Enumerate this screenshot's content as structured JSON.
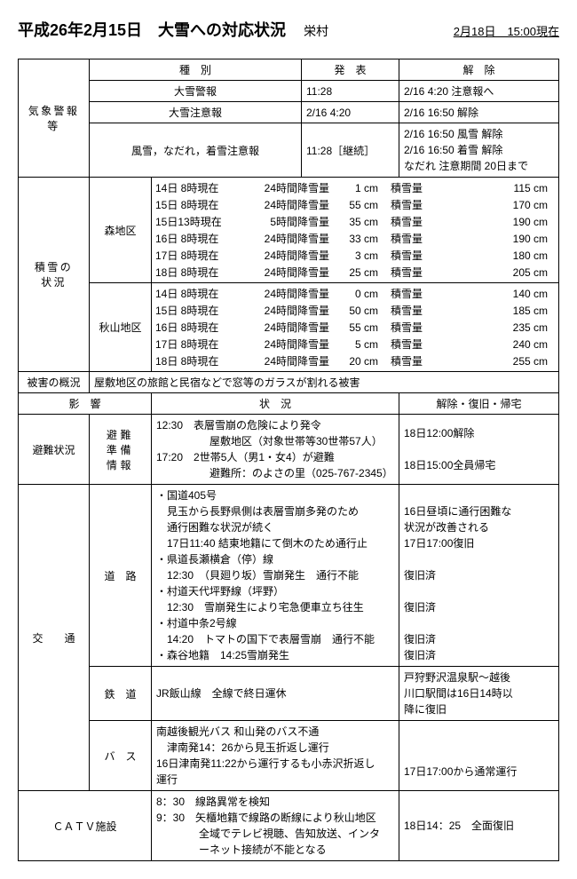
{
  "header": {
    "title": "平成26年2月15日　大雪への対応状況",
    "village": "栄村",
    "timestamp": "2月18日　15:00現在"
  },
  "weather": {
    "label": "気象警報等",
    "cols": [
      "種　別",
      "発　表",
      "解　除"
    ],
    "rows": [
      {
        "type": "大雪警報",
        "announced": "11:28",
        "cancelled": "2/16 4:20 注意報へ"
      },
      {
        "type": "大雪注意報",
        "announced": "2/16 4:20",
        "cancelled": "2/16 16:50 解除"
      },
      {
        "type": "風雪，なだれ，着雪注意報",
        "announced": "11:28［継続］",
        "cancelled": "2/16 16:50 風雪 解除\n2/16 16:50 着雪 解除\nなだれ 注意期間 20日まで"
      }
    ]
  },
  "snow": {
    "label": "積雪の\n状況",
    "areas": [
      {
        "name": "森地区",
        "rows": [
          {
            "dt": "14日 8時現在",
            "period": "24時間降雪量",
            "amt": "1 cm",
            "depth_label": "積雪量",
            "depth": "115 cm"
          },
          {
            "dt": "15日 8時現在",
            "period": "24時間降雪量",
            "amt": "55 cm",
            "depth_label": "積雪量",
            "depth": "170 cm"
          },
          {
            "dt": "15日13時現在",
            "period": "5時間降雪量",
            "amt": "35 cm",
            "depth_label": "積雪量",
            "depth": "190 cm"
          },
          {
            "dt": "16日 8時現在",
            "period": "24時間降雪量",
            "amt": "33 cm",
            "depth_label": "積雪量",
            "depth": "190 cm"
          },
          {
            "dt": "17日 8時現在",
            "period": "24時間降雪量",
            "amt": "3 cm",
            "depth_label": "積雪量",
            "depth": "180 cm"
          },
          {
            "dt": "18日 8時現在",
            "period": "24時間降雪量",
            "amt": "25 cm",
            "depth_label": "積雪量",
            "depth": "205 cm"
          }
        ]
      },
      {
        "name": "秋山地区",
        "rows": [
          {
            "dt": "14日 8時現在",
            "period": "24時間降雪量",
            "amt": "0 cm",
            "depth_label": "積雪量",
            "depth": "140 cm"
          },
          {
            "dt": "15日 8時現在",
            "period": "24時間降雪量",
            "amt": "50 cm",
            "depth_label": "積雪量",
            "depth": "185 cm"
          },
          {
            "dt": "16日 8時現在",
            "period": "24時間降雪量",
            "amt": "55 cm",
            "depth_label": "積雪量",
            "depth": "235 cm"
          },
          {
            "dt": "17日 8時現在",
            "period": "24時間降雪量",
            "amt": "5 cm",
            "depth_label": "積雪量",
            "depth": "240 cm"
          },
          {
            "dt": "18日 8時現在",
            "period": "24時間降雪量",
            "amt": "20 cm",
            "depth_label": "積雪量",
            "depth": "255 cm"
          }
        ]
      }
    ]
  },
  "damage": {
    "label": "被害の概況",
    "text": "屋敷地区の旅館と民宿などで窓等のガラスが割れる被害"
  },
  "impact": {
    "col_impact": "影　響",
    "col_status": "状　況",
    "col_recovery": "解除・復旧・帰宅"
  },
  "evac": {
    "label": "避難状況",
    "sublabel": "避難\n準備\n情報",
    "status": "12:30　表層雪崩の危険により発令\n　　　　　屋敷地区（対象世帯等30世帯57人）\n17:20　2世帯5人（男1・女4）が避難\n　　　　　避難所：のよさの里（025-767-2345）",
    "recovery": "18日12:00解除\n\n18日15:00全員帰宅"
  },
  "traffic": {
    "label": "交　　通",
    "road": {
      "sublabel": "道　路",
      "status": "・国道405号\n　見玉から長野県側は表層雪崩多発のため\n　通行困難な状況が続く\n　17日11:40 結東地籍にて倒木のため通行止\n・県道長瀬横倉（停）線\n　12:30　（貝廻り坂）雪崩発生　通行不能\n・村道天代坪野線（坪野）\n　12:30　雪崩発生により宅急便車立ち往生\n・村道中条2号線\n　14:20　トマトの国下で表層雪崩　通行不能\n・森谷地籍　14:25雪崩発生",
      "recovery": "\n16日昼頃に通行困難な\n状況が改善される\n17日17:00復旧\n\n復旧済\n\n復旧済\n\n復旧済\n復旧済"
    },
    "rail": {
      "sublabel": "鉄　道",
      "status": "JR飯山線　全線で終日運休",
      "recovery": "戸狩野沢温泉駅～越後\n川口駅間は16日14時以\n降に復旧"
    },
    "bus": {
      "sublabel": "バ　ス",
      "status": "南越後観光バス 和山発のバス不通\n　津南発14：26から見玉折返し運行\n16日津南発11:22から運行するも小赤沢折返し\n運行",
      "recovery": "\n\n17日17:00から通常運行"
    }
  },
  "catv": {
    "label": "ＣＡＴＶ施設",
    "status": "8：30　線路異常を検知\n9：30　矢櫃地籍で線路の断線により秋山地区\n　　　　全域でテレビ視聴、告知放送、インタ\n　　　　ーネット接続が不能となる",
    "recovery": "18日14：25　全面復旧"
  }
}
